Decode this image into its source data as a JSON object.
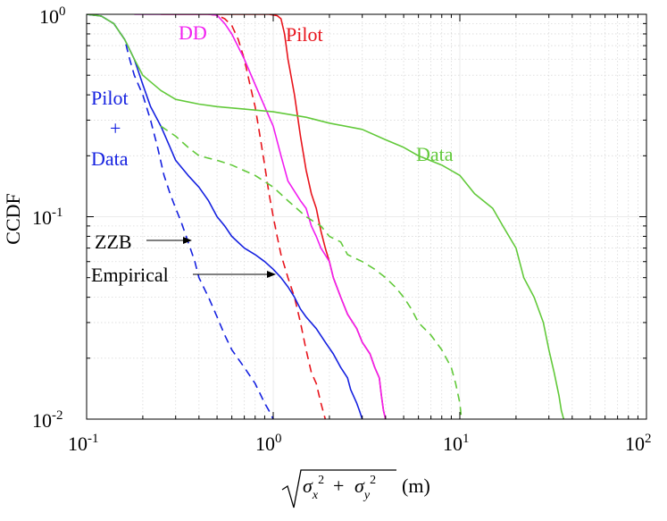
{
  "chart_data": {
    "type": "line",
    "scale": "log-log",
    "xlabel": "√(σx² + σy²) (m)",
    "xlabel_parts": {
      "sigma": "σ",
      "sub_x": "x",
      "sub_y": "y",
      "sup": "2",
      "plus": "+",
      "unit": "(m)"
    },
    "ylabel": "CCDF",
    "xlim": [
      0.1,
      100
    ],
    "ylim": [
      0.01,
      1
    ],
    "grid": true,
    "x_ticks": [
      {
        "value": 0.1,
        "base": "10",
        "exp": "-1"
      },
      {
        "value": 1,
        "base": "10",
        "exp": "0"
      },
      {
        "value": 10,
        "base": "10",
        "exp": "1"
      },
      {
        "value": 100,
        "base": "10",
        "exp": "2"
      }
    ],
    "y_ticks": [
      {
        "value": 0.01,
        "base": "10",
        "exp": "-2"
      },
      {
        "value": 0.1,
        "base": "10",
        "exp": "-1"
      },
      {
        "value": 1,
        "base": "10",
        "exp": "0"
      }
    ],
    "series": [
      {
        "name": "Pilot Empirical",
        "color": "#e8141c",
        "style": "solid",
        "points": [
          [
            0.25,
            1
          ],
          [
            0.95,
            1
          ],
          [
            1.05,
            0.985
          ],
          [
            1.1,
            0.95
          ],
          [
            1.15,
            0.8
          ],
          [
            1.2,
            0.6
          ],
          [
            1.3,
            0.4
          ],
          [
            1.4,
            0.25
          ],
          [
            1.5,
            0.17
          ],
          [
            1.6,
            0.13
          ],
          [
            1.7,
            0.11
          ],
          [
            1.8,
            0.085
          ],
          [
            1.9,
            0.07
          ],
          [
            2.0,
            0.06
          ],
          [
            2.1,
            0.05
          ],
          [
            2.3,
            0.04
          ],
          [
            2.5,
            0.033
          ],
          [
            2.8,
            0.028
          ],
          [
            3.0,
            0.024
          ],
          [
            3.3,
            0.021
          ],
          [
            3.5,
            0.018
          ],
          [
            3.7,
            0.016
          ],
          [
            3.8,
            0.013
          ],
          [
            3.9,
            0.011
          ],
          [
            4.0,
            0.01
          ]
        ]
      },
      {
        "name": "Pilot ZZB",
        "color": "#e8141c",
        "style": "dashed",
        "points": [
          [
            0.45,
            1
          ],
          [
            0.5,
            0.99
          ],
          [
            0.55,
            0.95
          ],
          [
            0.6,
            0.88
          ],
          [
            0.65,
            0.75
          ],
          [
            0.7,
            0.6
          ],
          [
            0.75,
            0.45
          ],
          [
            0.8,
            0.35
          ],
          [
            0.85,
            0.25
          ],
          [
            0.9,
            0.18
          ],
          [
            0.95,
            0.13
          ],
          [
            1.0,
            0.1
          ],
          [
            1.05,
            0.08
          ],
          [
            1.1,
            0.065
          ],
          [
            1.2,
            0.05
          ],
          [
            1.3,
            0.04
          ],
          [
            1.4,
            0.03
          ],
          [
            1.5,
            0.022
          ],
          [
            1.6,
            0.017
          ],
          [
            1.7,
            0.015
          ],
          [
            1.8,
            0.012
          ],
          [
            1.9,
            0.01
          ]
        ]
      },
      {
        "name": "DD Empirical",
        "color": "#f11ef0",
        "style": "solid",
        "points": [
          [
            0.18,
            1
          ],
          [
            0.45,
            1
          ],
          [
            0.5,
            0.99
          ],
          [
            0.55,
            0.9
          ],
          [
            0.6,
            0.8
          ],
          [
            0.7,
            0.6
          ],
          [
            0.8,
            0.45
          ],
          [
            0.9,
            0.35
          ],
          [
            1.0,
            0.28
          ],
          [
            1.1,
            0.2
          ],
          [
            1.2,
            0.15
          ],
          [
            1.4,
            0.12
          ],
          [
            1.5,
            0.11
          ],
          [
            1.6,
            0.09
          ],
          [
            1.7,
            0.08
          ],
          [
            1.8,
            0.07
          ],
          [
            2.0,
            0.06
          ],
          [
            2.1,
            0.05
          ],
          [
            2.3,
            0.04
          ],
          [
            2.5,
            0.033
          ],
          [
            2.8,
            0.028
          ],
          [
            3.0,
            0.024
          ],
          [
            3.3,
            0.021
          ],
          [
            3.5,
            0.018
          ],
          [
            3.7,
            0.016
          ],
          [
            3.8,
            0.013
          ],
          [
            3.9,
            0.011
          ],
          [
            4.0,
            0.01
          ]
        ]
      },
      {
        "name": "Pilot+Data Empirical",
        "color": "#1521e0",
        "style": "solid",
        "points": [
          [
            0.1,
            1
          ],
          [
            0.12,
            0.98
          ],
          [
            0.14,
            0.9
          ],
          [
            0.16,
            0.75
          ],
          [
            0.18,
            0.6
          ],
          [
            0.2,
            0.45
          ],
          [
            0.22,
            0.35
          ],
          [
            0.25,
            0.28
          ],
          [
            0.28,
            0.22
          ],
          [
            0.3,
            0.19
          ],
          [
            0.35,
            0.16
          ],
          [
            0.4,
            0.14
          ],
          [
            0.45,
            0.12
          ],
          [
            0.5,
            0.1
          ],
          [
            0.55,
            0.09
          ],
          [
            0.6,
            0.08
          ],
          [
            0.7,
            0.07
          ],
          [
            0.8,
            0.065
          ],
          [
            0.9,
            0.06
          ],
          [
            1.0,
            0.055
          ],
          [
            1.1,
            0.05
          ],
          [
            1.2,
            0.045
          ],
          [
            1.3,
            0.04
          ],
          [
            1.4,
            0.035
          ],
          [
            1.5,
            0.032
          ],
          [
            1.7,
            0.028
          ],
          [
            1.9,
            0.024
          ],
          [
            2.1,
            0.021
          ],
          [
            2.3,
            0.018
          ],
          [
            2.5,
            0.016
          ],
          [
            2.6,
            0.014
          ],
          [
            2.8,
            0.012
          ],
          [
            2.9,
            0.011
          ],
          [
            3.0,
            0.01
          ]
        ]
      },
      {
        "name": "Pilot+Data ZZB",
        "color": "#1521e0",
        "style": "dashed",
        "points": [
          [
            0.1,
            1
          ],
          [
            0.12,
            0.98
          ],
          [
            0.14,
            0.9
          ],
          [
            0.16,
            0.75
          ],
          [
            0.17,
            0.6
          ],
          [
            0.18,
            0.5
          ],
          [
            0.2,
            0.4
          ],
          [
            0.22,
            0.3
          ],
          [
            0.24,
            0.22
          ],
          [
            0.26,
            0.16
          ],
          [
            0.28,
            0.13
          ],
          [
            0.3,
            0.11
          ],
          [
            0.32,
            0.095
          ],
          [
            0.35,
            0.075
          ],
          [
            0.38,
            0.06
          ],
          [
            0.4,
            0.05
          ],
          [
            0.45,
            0.04
          ],
          [
            0.5,
            0.032
          ],
          [
            0.55,
            0.026
          ],
          [
            0.6,
            0.022
          ],
          [
            0.7,
            0.018
          ],
          [
            0.8,
            0.015
          ],
          [
            0.9,
            0.012
          ],
          [
            0.95,
            0.011
          ],
          [
            1.0,
            0.01
          ]
        ]
      },
      {
        "name": "Data Empirical",
        "color": "#62c93a",
        "style": "solid",
        "points": [
          [
            0.1,
            1
          ],
          [
            0.12,
            0.98
          ],
          [
            0.14,
            0.9
          ],
          [
            0.16,
            0.75
          ],
          [
            0.18,
            0.6
          ],
          [
            0.2,
            0.5
          ],
          [
            0.25,
            0.42
          ],
          [
            0.3,
            0.38
          ],
          [
            0.4,
            0.36
          ],
          [
            0.5,
            0.35
          ],
          [
            0.7,
            0.34
          ],
          [
            1.0,
            0.33
          ],
          [
            1.5,
            0.31
          ],
          [
            2.0,
            0.29
          ],
          [
            3.0,
            0.27
          ],
          [
            4.0,
            0.24
          ],
          [
            5.0,
            0.22
          ],
          [
            6.0,
            0.2
          ],
          [
            8.0,
            0.18
          ],
          [
            10,
            0.16
          ],
          [
            12,
            0.13
          ],
          [
            15,
            0.11
          ],
          [
            17,
            0.09
          ],
          [
            20,
            0.07
          ],
          [
            22,
            0.05
          ],
          [
            25,
            0.04
          ],
          [
            28,
            0.03
          ],
          [
            30,
            0.022
          ],
          [
            32,
            0.017
          ],
          [
            34,
            0.013
          ],
          [
            35,
            0.011
          ],
          [
            36,
            0.01
          ]
        ]
      },
      {
        "name": "Data ZZB",
        "color": "#62c93a",
        "style": "dashed",
        "points": [
          [
            0.25,
            0.28
          ],
          [
            0.3,
            0.25
          ],
          [
            0.35,
            0.22
          ],
          [
            0.4,
            0.2
          ],
          [
            0.5,
            0.19
          ],
          [
            0.6,
            0.18
          ],
          [
            0.8,
            0.16
          ],
          [
            1.0,
            0.14
          ],
          [
            1.2,
            0.12
          ],
          [
            1.5,
            0.1
          ],
          [
            1.8,
            0.09
          ],
          [
            2.0,
            0.08
          ],
          [
            2.3,
            0.075
          ],
          [
            2.5,
            0.065
          ],
          [
            3.0,
            0.06
          ],
          [
            3.5,
            0.055
          ],
          [
            4.0,
            0.05
          ],
          [
            4.5,
            0.045
          ],
          [
            5.0,
            0.04
          ],
          [
            5.5,
            0.035
          ],
          [
            6.0,
            0.03
          ],
          [
            7.0,
            0.026
          ],
          [
            8.0,
            0.022
          ],
          [
            9.0,
            0.018
          ],
          [
            9.5,
            0.015
          ],
          [
            10,
            0.012
          ],
          [
            10.2,
            0.01
          ]
        ]
      }
    ],
    "annotations": {
      "dd": {
        "text": "DD",
        "color": "#f11ef0"
      },
      "pilot": {
        "text": "Pilot",
        "color": "#e8141c"
      },
      "data": {
        "text": "Data",
        "color": "#62c93a"
      },
      "pilot_data_1": {
        "text": "Pilot",
        "color": "#1521e0"
      },
      "pilot_data_2": {
        "text": "+",
        "color": "#1521e0"
      },
      "pilot_data_3": {
        "text": "Data",
        "color": "#1521e0"
      },
      "zzb": {
        "text": "ZZB",
        "color": "#000000"
      },
      "empirical": {
        "text": "Empirical",
        "color": "#000000"
      }
    }
  }
}
